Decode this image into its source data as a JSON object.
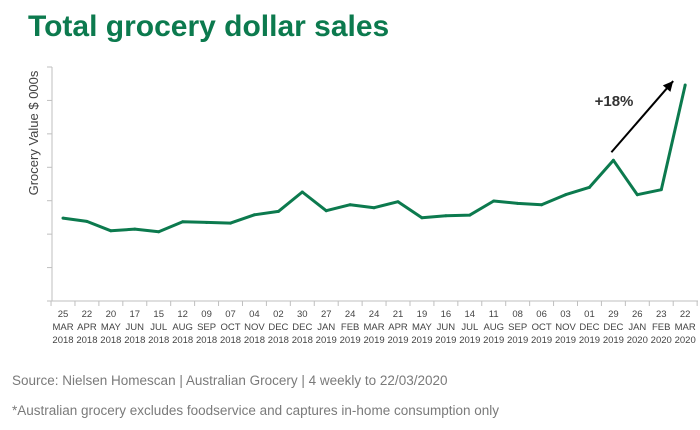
{
  "title": "Total grocery dollar sales",
  "source": "Source: Nielsen Homescan | Australian Grocery | 4 weekly to 22/03/2020",
  "footnote": "*Australian grocery excludes foodservice and captures in-home consumption only",
  "colors": {
    "title": "#0c7a4e",
    "line": "#0c7a4e",
    "axis": "#bfbfbf",
    "text": "#444444",
    "note": "#7a7a7a",
    "arrow": "#000000"
  },
  "chart_data": {
    "type": "line",
    "title": "Total grocery dollar sales",
    "ylabel": "Grocery Value $ 000s",
    "xlabel": "",
    "y_tick_labels_shown": false,
    "grid": false,
    "categories": [
      [
        "25",
        "MAR",
        "2018"
      ],
      [
        "22",
        "APR",
        "2018"
      ],
      [
        "20",
        "MAY",
        "2018"
      ],
      [
        "17",
        "JUN",
        "2018"
      ],
      [
        "15",
        "JUL",
        "2018"
      ],
      [
        "12",
        "AUG",
        "2018"
      ],
      [
        "09",
        "SEP",
        "2018"
      ],
      [
        "07",
        "OCT",
        "2018"
      ],
      [
        "04",
        "NOV",
        "2018"
      ],
      [
        "02",
        "DEC",
        "2018"
      ],
      [
        "30",
        "DEC",
        "2018"
      ],
      [
        "27",
        "JAN",
        "2019"
      ],
      [
        "24",
        "FEB",
        "2019"
      ],
      [
        "24",
        "MAR",
        "2019"
      ],
      [
        "21",
        "APR",
        "2019"
      ],
      [
        "19",
        "MAY",
        "2019"
      ],
      [
        "16",
        "JUN",
        "2019"
      ],
      [
        "14",
        "JUL",
        "2019"
      ],
      [
        "11",
        "AUG",
        "2019"
      ],
      [
        "08",
        "SEP",
        "2019"
      ],
      [
        "06",
        "OCT",
        "2019"
      ],
      [
        "03",
        "NOV",
        "2019"
      ],
      [
        "01",
        "DEC",
        "2019"
      ],
      [
        "29",
        "DEC",
        "2019"
      ],
      [
        "26",
        "JAN",
        "2020"
      ],
      [
        "23",
        "FEB",
        "2020"
      ],
      [
        "22",
        "MAR",
        "2020"
      ]
    ],
    "ylim": [
      0,
      7
    ],
    "series": [
      {
        "values": [
          2.48,
          2.38,
          2.1,
          2.15,
          2.07,
          2.37,
          2.35,
          2.33,
          2.58,
          2.68,
          3.26,
          2.7,
          2.88,
          2.79,
          2.97,
          2.49,
          2.55,
          2.57,
          2.99,
          2.92,
          2.88,
          3.18,
          3.4,
          4.21,
          3.18,
          3.33,
          6.46
        ]
      }
    ],
    "annotations": [
      {
        "text": "+18%",
        "type": "arrow"
      }
    ]
  }
}
